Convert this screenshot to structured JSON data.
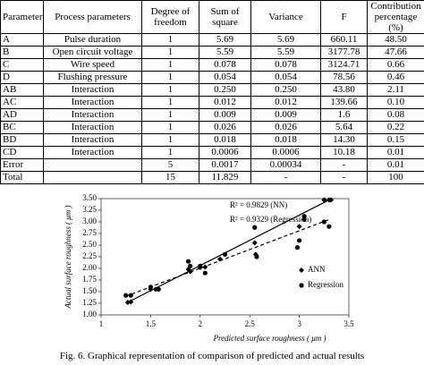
{
  "table": {
    "headers": [
      "Parameter",
      "Process parameters",
      "Degree of freedom",
      "Sum of square",
      "Variance",
      "F",
      "Contribution percentage (%)"
    ],
    "rows": [
      [
        "A",
        "Pulse duration",
        "1",
        "5.69",
        "5.69",
        "660.11",
        "48.50"
      ],
      [
        "B",
        "Open circuit voltage",
        "1",
        "5.59",
        "5.59",
        "3177.78",
        "47.66"
      ],
      [
        "C",
        "Wire speed",
        "1",
        "0.078",
        "0.078",
        "3124.71",
        "0.66"
      ],
      [
        "D",
        "Flushing pressure",
        "1",
        "0.054",
        "0.054",
        "78.56",
        "0.46"
      ],
      [
        "AB",
        "Interaction",
        "1",
        "0.250",
        "0.250",
        "43.80",
        "2.11"
      ],
      [
        "AC",
        "Interaction",
        "1",
        "0.012",
        "0.012",
        "139.66",
        "0.10"
      ],
      [
        "AD",
        "Interaction",
        "1",
        "0.009",
        "0.009",
        "1.6",
        "0.08"
      ],
      [
        "BC",
        "Interaction",
        "1",
        "0.026",
        "0.026",
        "5.64",
        "0.22"
      ],
      [
        "BD",
        "Interaction",
        "1",
        "0.018",
        "0.018",
        "14.30",
        "0.15"
      ],
      [
        "CD",
        "Interaction",
        "1",
        "0.0006",
        "0.0006",
        "10.18",
        "0.01"
      ],
      [
        "Error",
        null,
        "5",
        "0.0017",
        "0.00034",
        "-",
        "0.01"
      ],
      [
        "Total",
        null,
        "15",
        "11.829",
        "-",
        "-",
        "100"
      ]
    ]
  },
  "chart_data": {
    "type": "scatter",
    "x_label": "Predicted surface roughness ( μm )",
    "y_label": "Actual surface roughness ( μm )",
    "annotations": [
      "R² = 0.9829 (NN)",
      "R² = 0.9329 (Regression)"
    ],
    "xlim": [
      1,
      3.5
    ],
    "xticks": [
      1,
      1.5,
      2,
      2.5,
      3,
      3.5
    ],
    "ylim": [
      1,
      3.5
    ],
    "yticks": [
      {
        "value": 1,
        "label": "1.00"
      },
      {
        "value": 1.25,
        "label": "1.25"
      },
      {
        "value": 1.5,
        "label": "1.50"
      },
      {
        "value": 1.75,
        "label": "1.75"
      },
      {
        "value": 2,
        "label": "2.00"
      },
      {
        "value": 2.25,
        "label": "2.25"
      },
      {
        "value": 2.5,
        "label": "2.50"
      },
      {
        "value": 2.75,
        "label": "2.75"
      },
      {
        "value": 3,
        "label": "3.00"
      },
      {
        "value": 3.25,
        "label": "3.25"
      },
      {
        "value": 3.5,
        "label": "3.50"
      }
    ],
    "series": [
      {
        "name": "ANN",
        "marker": "diamond",
        "color": "#000000",
        "x": [
          1.27,
          1.3,
          1.5,
          1.55,
          1.88,
          1.9,
          2.0,
          2.05,
          2.2,
          2.55,
          2.56,
          3.0,
          3.05,
          3.25,
          3.3,
          3.32
        ],
        "values": [
          1.27,
          1.28,
          1.55,
          1.55,
          1.98,
          1.93,
          2.02,
          2.03,
          2.2,
          2.55,
          2.3,
          2.9,
          3.05,
          3.47,
          3.47,
          3.47
        ]
      },
      {
        "name": "Regression",
        "marker": "circle",
        "color": "#000000",
        "x": [
          1.25,
          1.3,
          1.5,
          1.58,
          1.88,
          1.9,
          2.05,
          2.0,
          2.25,
          2.55,
          2.57,
          2.98,
          3.05,
          3.25,
          3.3,
          3.0
        ],
        "values": [
          1.42,
          1.42,
          1.6,
          1.55,
          2.15,
          2.05,
          1.9,
          2.05,
          2.3,
          2.88,
          2.25,
          2.45,
          3.12,
          3.0,
          2.9,
          2.6
        ]
      }
    ],
    "fit_lines": [
      {
        "style": "solid",
        "x": [
          1.25,
          3.3
        ],
        "values": [
          1.25,
          3.47
        ]
      },
      {
        "style": "dashed",
        "x": [
          1.25,
          3.3
        ],
        "values": [
          1.4,
          3.05
        ]
      }
    ]
  },
  "caption": "Fig. 6. Graphical representation of comparison of predicted and actual results"
}
